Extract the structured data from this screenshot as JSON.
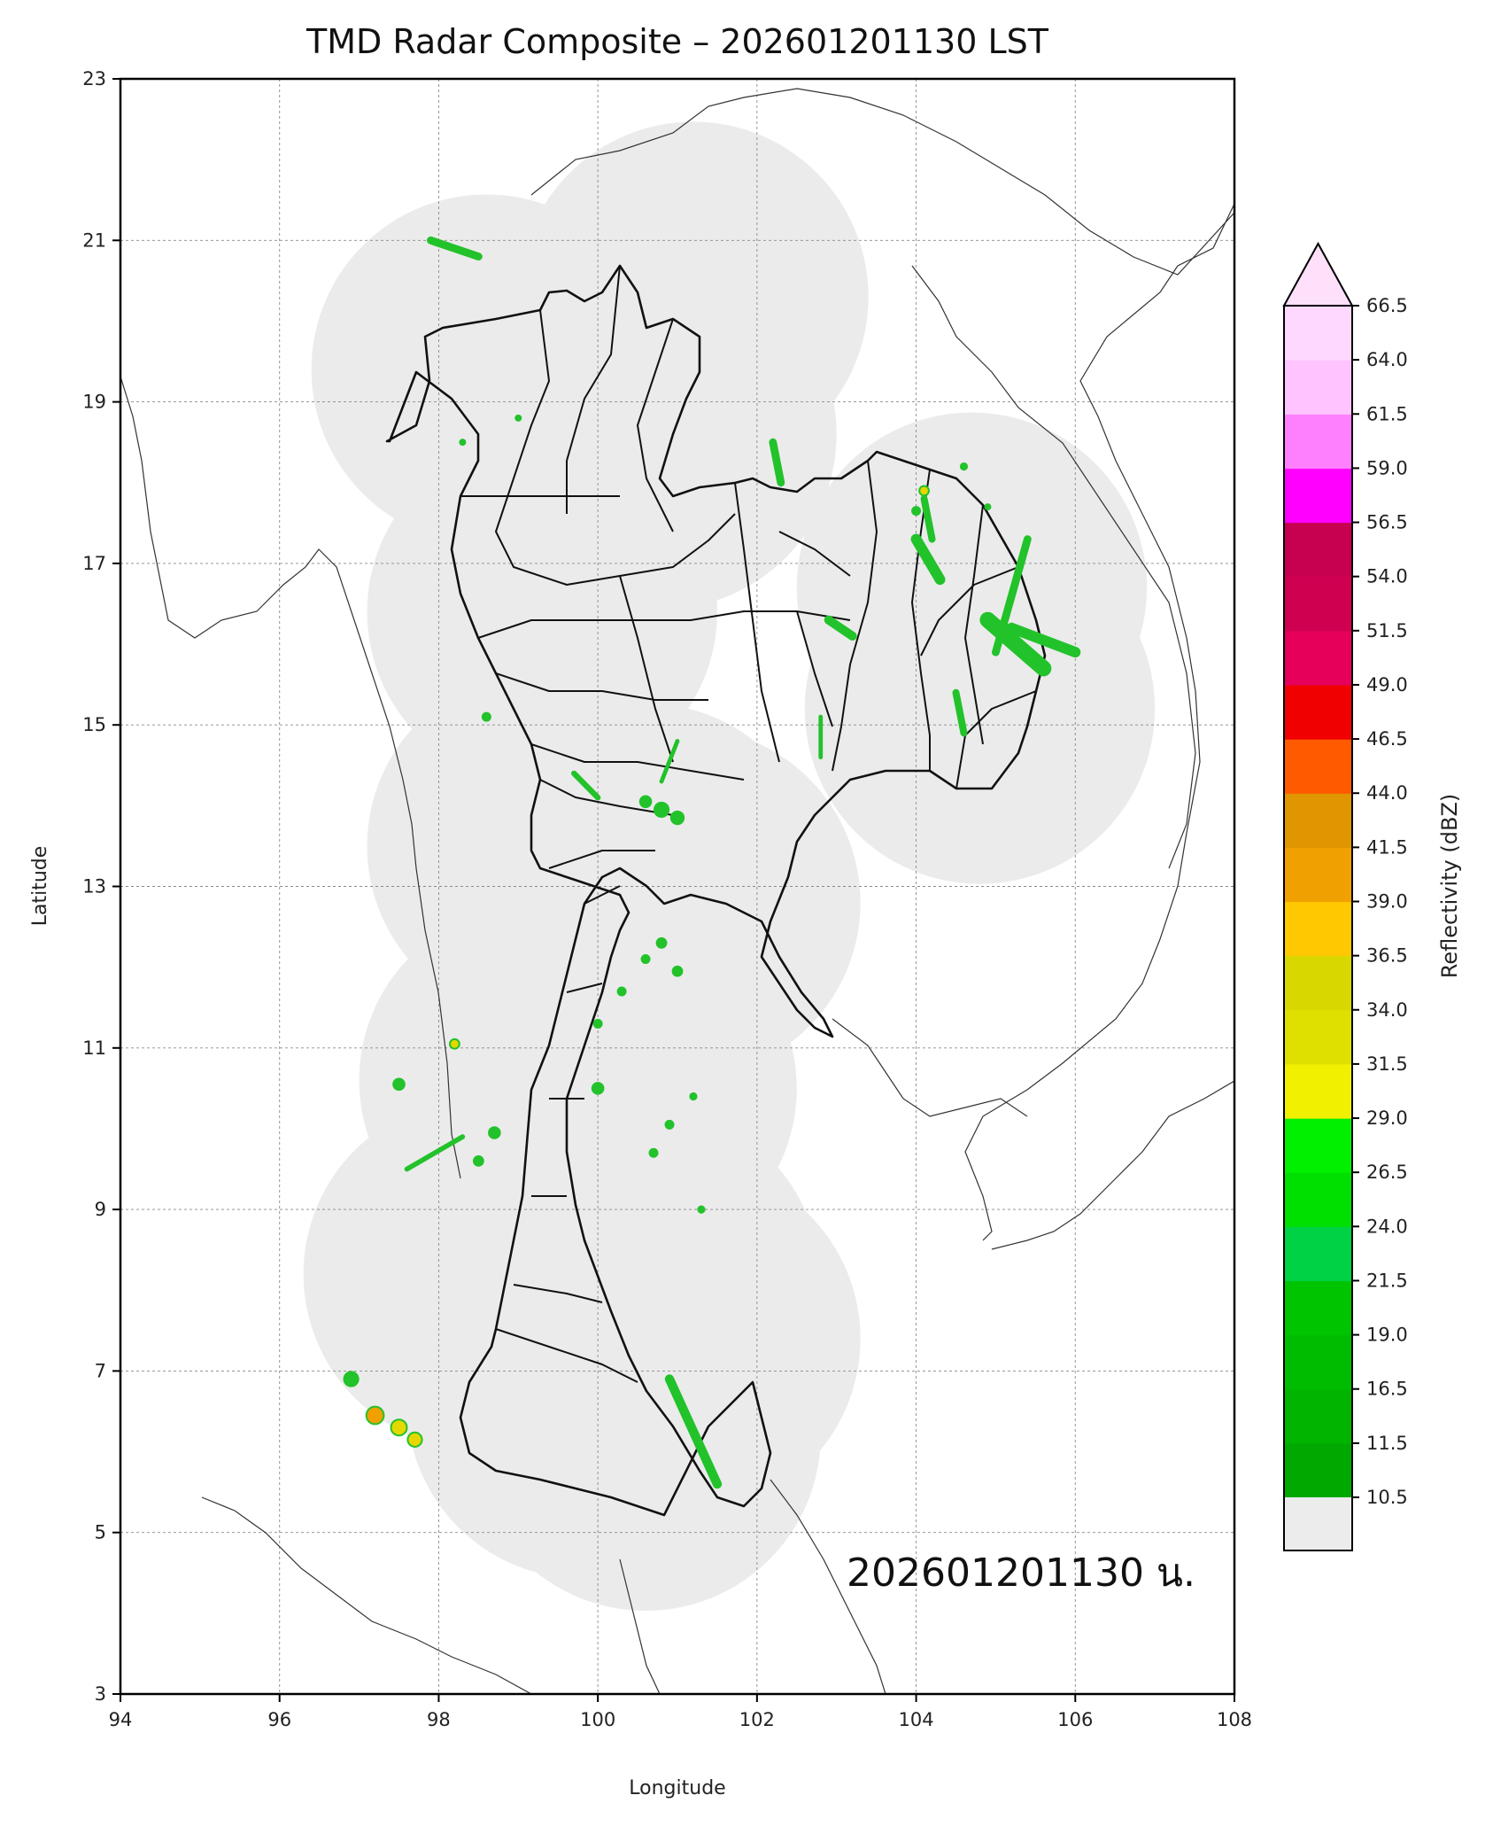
{
  "title": "TMD Radar Composite – 202601201130 LST",
  "timestamp_label": "202601201130 น.",
  "axes": {
    "xlabel": "Longitude",
    "ylabel": "Latitude",
    "xlim": [
      94,
      108
    ],
    "ylim": [
      3,
      23
    ],
    "xticks": [
      94,
      96,
      98,
      100,
      102,
      104,
      106,
      108
    ],
    "yticks": [
      3,
      5,
      7,
      9,
      11,
      13,
      15,
      17,
      19,
      21,
      23
    ],
    "grid": true
  },
  "colorbar": {
    "label": "Reflectivity (dBZ)",
    "tick_labels": [
      "10.5",
      "11.5",
      "16.5",
      "19.0",
      "21.5",
      "24.0",
      "26.5",
      "29.0",
      "31.5",
      "34.0",
      "36.5",
      "39.0",
      "41.5",
      "44.0",
      "46.5",
      "49.0",
      "51.5",
      "54.0",
      "56.5",
      "59.0",
      "61.5",
      "64.0",
      "66.5"
    ],
    "under_color": "#ececec",
    "over_color": "#ffe0fb",
    "colors": [
      "#00a800",
      "#00b400",
      "#00bc00",
      "#00c400",
      "#00d246",
      "#00e000",
      "#00f000",
      "#f0f000",
      "#e0e000",
      "#d8d800",
      "#ffc800",
      "#f0a000",
      "#e09600",
      "#ff5a00",
      "#f00000",
      "#e6005a",
      "#d00050",
      "#c80050",
      "#ff00ff",
      "#ff80ff",
      "#ffc4ff",
      "#ffd8ff"
    ]
  },
  "colors": {
    "coverage": "#ebebeb",
    "echo_green": "#22c22a",
    "echo_bright": "#4ae04a",
    "echo_yellow": "#e4d800",
    "echo_orange": "#f0a000",
    "border": "#111111",
    "coast": "#333333"
  },
  "radar_coverage_centers": [
    [
      100.8,
      18.6
    ],
    [
      98.6,
      19.4
    ],
    [
      101.2,
      20.3
    ],
    [
      99.3,
      16.4
    ],
    [
      104.8,
      15.2
    ],
    [
      104.7,
      16.7
    ],
    [
      99.3,
      13.5
    ],
    [
      100.6,
      13.1
    ],
    [
      101.1,
      12.8
    ],
    [
      99.2,
      10.6
    ],
    [
      100.3,
      10.5
    ],
    [
      98.5,
      8.2
    ],
    [
      100.6,
      8.1
    ],
    [
      99.8,
      6.6
    ],
    [
      100.6,
      6.2
    ],
    [
      101.1,
      7.4
    ]
  ],
  "echoes": [
    {
      "type": "streak",
      "pts": [
        [
          97.9,
          21.0
        ],
        [
          98.5,
          20.8
        ]
      ],
      "w": 2.2,
      "c": "echo_green"
    },
    {
      "type": "streak",
      "pts": [
        [
          102.2,
          18.5
        ],
        [
          102.3,
          18.0
        ]
      ],
      "w": 2.2,
      "c": "echo_green"
    },
    {
      "type": "streak",
      "pts": [
        [
          104.0,
          17.3
        ],
        [
          104.3,
          16.8
        ]
      ],
      "w": 3.0,
      "c": "echo_green"
    },
    {
      "type": "streak",
      "pts": [
        [
          104.1,
          17.8
        ],
        [
          104.2,
          17.3
        ]
      ],
      "w": 2.0,
      "c": "echo_green"
    },
    {
      "type": "streak",
      "pts": [
        [
          105.4,
          17.3
        ],
        [
          105.0,
          15.9
        ]
      ],
      "w": 2.2,
      "c": "echo_green"
    },
    {
      "type": "streak",
      "pts": [
        [
          104.9,
          16.3
        ],
        [
          105.6,
          15.7
        ]
      ],
      "w": 4.5,
      "c": "echo_green"
    },
    {
      "type": "streak",
      "pts": [
        [
          105.2,
          16.2
        ],
        [
          106.0,
          15.9
        ]
      ],
      "w": 3.0,
      "c": "echo_green"
    },
    {
      "type": "streak",
      "pts": [
        [
          102.9,
          16.3
        ],
        [
          103.2,
          16.1
        ]
      ],
      "w": 2.5,
      "c": "echo_green"
    },
    {
      "type": "streak",
      "pts": [
        [
          104.5,
          15.4
        ],
        [
          104.6,
          14.9
        ]
      ],
      "w": 2.0,
      "c": "echo_green"
    },
    {
      "type": "streak",
      "pts": [
        [
          102.8,
          15.1
        ],
        [
          102.8,
          14.6
        ]
      ],
      "w": 1.2,
      "c": "echo_green"
    },
    {
      "type": "streak",
      "pts": [
        [
          99.7,
          14.4
        ],
        [
          100.0,
          14.1
        ]
      ],
      "w": 1.6,
      "c": "echo_green"
    },
    {
      "type": "streak",
      "pts": [
        [
          101.0,
          14.8
        ],
        [
          100.8,
          14.3
        ]
      ],
      "w": 1.2,
      "c": "echo_green"
    },
    {
      "type": "streak",
      "pts": [
        [
          100.9,
          6.9
        ],
        [
          101.5,
          5.6
        ]
      ],
      "w": 2.6,
      "c": "echo_green"
    },
    {
      "type": "streak",
      "pts": [
        [
          97.6,
          9.5
        ],
        [
          98.3,
          9.9
        ]
      ],
      "w": 1.4,
      "c": "echo_green"
    },
    {
      "type": "blob",
      "at": [
        104.1,
        17.9
      ],
      "r": 0.06,
      "c": "echo_yellow"
    },
    {
      "type": "blob",
      "at": [
        104.0,
        17.65
      ],
      "r": 0.05,
      "c": "echo_green"
    },
    {
      "type": "blob",
      "at": [
        100.8,
        13.95
      ],
      "r": 0.09,
      "c": "echo_green"
    },
    {
      "type": "blob",
      "at": [
        100.6,
        14.05
      ],
      "r": 0.07,
      "c": "echo_green"
    },
    {
      "type": "blob",
      "at": [
        101.0,
        13.85
      ],
      "r": 0.08,
      "c": "echo_green"
    },
    {
      "type": "blob",
      "at": [
        100.8,
        12.3
      ],
      "r": 0.06,
      "c": "echo_green"
    },
    {
      "type": "blob",
      "at": [
        100.6,
        12.1
      ],
      "r": 0.05,
      "c": "echo_green"
    },
    {
      "type": "blob",
      "at": [
        101.0,
        11.95
      ],
      "r": 0.06,
      "c": "echo_green"
    },
    {
      "type": "blob",
      "at": [
        100.3,
        11.7
      ],
      "r": 0.05,
      "c": "echo_green"
    },
    {
      "type": "blob",
      "at": [
        100.0,
        11.3
      ],
      "r": 0.05,
      "c": "echo_green"
    },
    {
      "type": "blob",
      "at": [
        98.2,
        11.05
      ],
      "r": 0.06,
      "c": "echo_yellow"
    },
    {
      "type": "blob",
      "at": [
        97.5,
        10.55
      ],
      "r": 0.07,
      "c": "echo_green"
    },
    {
      "type": "blob",
      "at": [
        100.0,
        10.5
      ],
      "r": 0.07,
      "c": "echo_green"
    },
    {
      "type": "blob",
      "at": [
        100.9,
        10.05
      ],
      "r": 0.05,
      "c": "echo_green"
    },
    {
      "type": "blob",
      "at": [
        101.2,
        10.4
      ],
      "r": 0.04,
      "c": "echo_green"
    },
    {
      "type": "blob",
      "at": [
        98.7,
        9.95
      ],
      "r": 0.07,
      "c": "echo_green"
    },
    {
      "type": "blob",
      "at": [
        98.5,
        9.6
      ],
      "r": 0.06,
      "c": "echo_green"
    },
    {
      "type": "blob",
      "at": [
        100.7,
        9.7
      ],
      "r": 0.05,
      "c": "echo_green"
    },
    {
      "type": "blob",
      "at": [
        101.3,
        9.0
      ],
      "r": 0.04,
      "c": "echo_green"
    },
    {
      "type": "blob",
      "at": [
        96.9,
        6.9
      ],
      "r": 0.09,
      "c": "echo_green"
    },
    {
      "type": "blob",
      "at": [
        97.2,
        6.45
      ],
      "r": 0.11,
      "c": "echo_orange"
    },
    {
      "type": "blob",
      "at": [
        97.5,
        6.3
      ],
      "r": 0.1,
      "c": "echo_yellow"
    },
    {
      "type": "blob",
      "at": [
        97.7,
        6.15
      ],
      "r": 0.09,
      "c": "echo_yellow"
    },
    {
      "type": "blob",
      "at": [
        98.6,
        15.1
      ],
      "r": 0.05,
      "c": "echo_green"
    },
    {
      "type": "blob",
      "at": [
        98.3,
        18.5
      ],
      "r": 0.03,
      "c": "echo_green"
    },
    {
      "type": "blob",
      "at": [
        99.0,
        18.8
      ],
      "r": 0.03,
      "c": "echo_green"
    },
    {
      "type": "blob",
      "at": [
        104.6,
        18.2
      ],
      "r": 0.04,
      "c": "echo_green"
    },
    {
      "type": "blob",
      "at": [
        104.9,
        17.7
      ],
      "r": 0.03,
      "c": "echo_green"
    }
  ]
}
